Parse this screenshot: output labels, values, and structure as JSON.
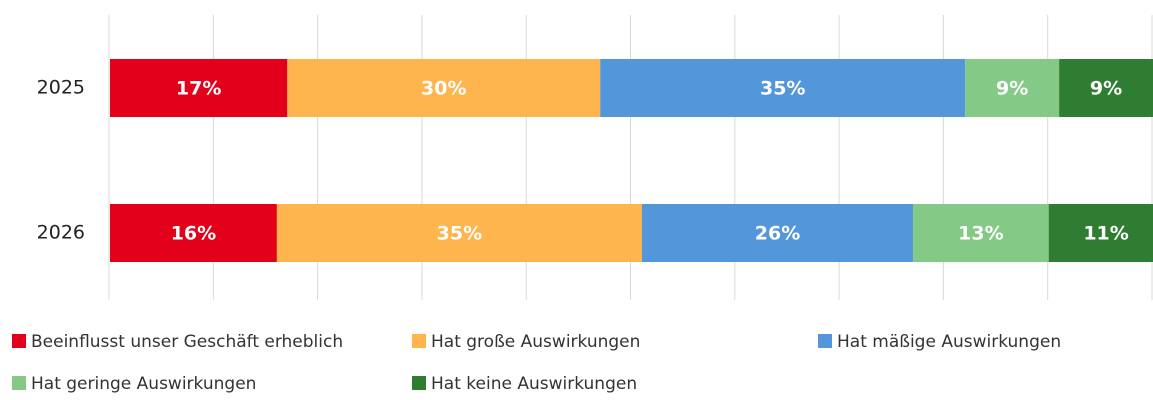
{
  "chart_data": {
    "type": "stacked_barh",
    "categories": [
      "2025",
      "2026"
    ],
    "series": [
      {
        "name": "Beeinflusst unser Geschäft erheblich",
        "color": "#e3001b",
        "values": [
          17,
          16
        ],
        "value_labels": [
          "17%",
          "16%"
        ]
      },
      {
        "name": "Hat große Auswirkungen",
        "color": "#ffb54d",
        "values": [
          30,
          35
        ],
        "value_labels": [
          "30%",
          "35%"
        ]
      },
      {
        "name": "Hat mäßige Auswirkungen",
        "color": "#5496da",
        "values": [
          35,
          26
        ],
        "value_labels": [
          "35%",
          "26%"
        ]
      },
      {
        "name": "Hat geringe Auswirkungen",
        "color": "#84c985",
        "values": [
          9,
          13
        ],
        "value_labels": [
          "9%",
          "13%"
        ]
      },
      {
        "name": "Hat keine Auswirkungen",
        "color": "#2f7d33",
        "values": [
          9,
          11
        ],
        "value_labels": [
          "9%",
          "11%"
        ]
      }
    ],
    "xlim": [
      0,
      100
    ],
    "xticks": [
      0,
      10,
      20,
      30,
      40,
      50,
      60,
      70,
      80,
      90,
      100
    ],
    "grid": true,
    "legend": "bottom"
  }
}
